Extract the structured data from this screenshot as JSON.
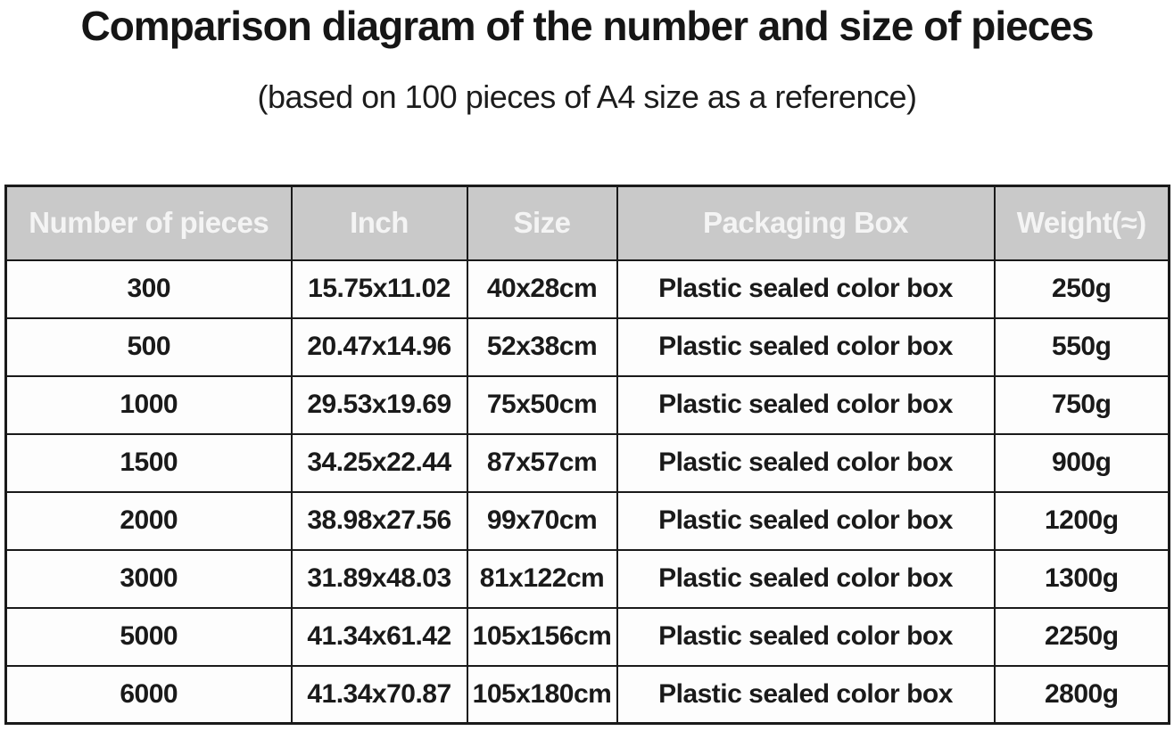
{
  "chart_data": {
    "type": "table",
    "title": "Comparison diagram of the number and size of pieces",
    "subtitle": "(based on 100 pieces of A4 size as a reference)",
    "columns": [
      "Number of pieces",
      "Inch",
      "Size",
      "Packaging Box",
      "Weight(≈)"
    ],
    "rows": [
      [
        "300",
        "15.75x11.02",
        "40x28cm",
        "Plastic sealed color box",
        "250g"
      ],
      [
        "500",
        "20.47x14.96",
        "52x38cm",
        "Plastic sealed color box",
        "550g"
      ],
      [
        "1000",
        "29.53x19.69",
        "75x50cm",
        "Plastic sealed color box",
        "750g"
      ],
      [
        "1500",
        "34.25x22.44",
        "87x57cm",
        "Plastic sealed color box",
        "900g"
      ],
      [
        "2000",
        "38.98x27.56",
        "99x70cm",
        "Plastic sealed color box",
        "1200g"
      ],
      [
        "3000",
        "31.89x48.03",
        "81x122cm",
        "Plastic sealed color box",
        "1300g"
      ],
      [
        "5000",
        "41.34x61.42",
        "105x156cm",
        "Plastic sealed color box",
        "2250g"
      ],
      [
        "6000",
        "41.34x70.87",
        "105x180cm",
        "Plastic sealed color box",
        "2800g"
      ]
    ],
    "layout": {
      "legend": "none",
      "grid": "on"
    }
  },
  "colors": {
    "background": "#ffffff",
    "header_bg": "#c9c9c9",
    "header_text": "#f4f4f4",
    "body_text": "#1a1a1a",
    "border": "#1a1a1a"
  }
}
